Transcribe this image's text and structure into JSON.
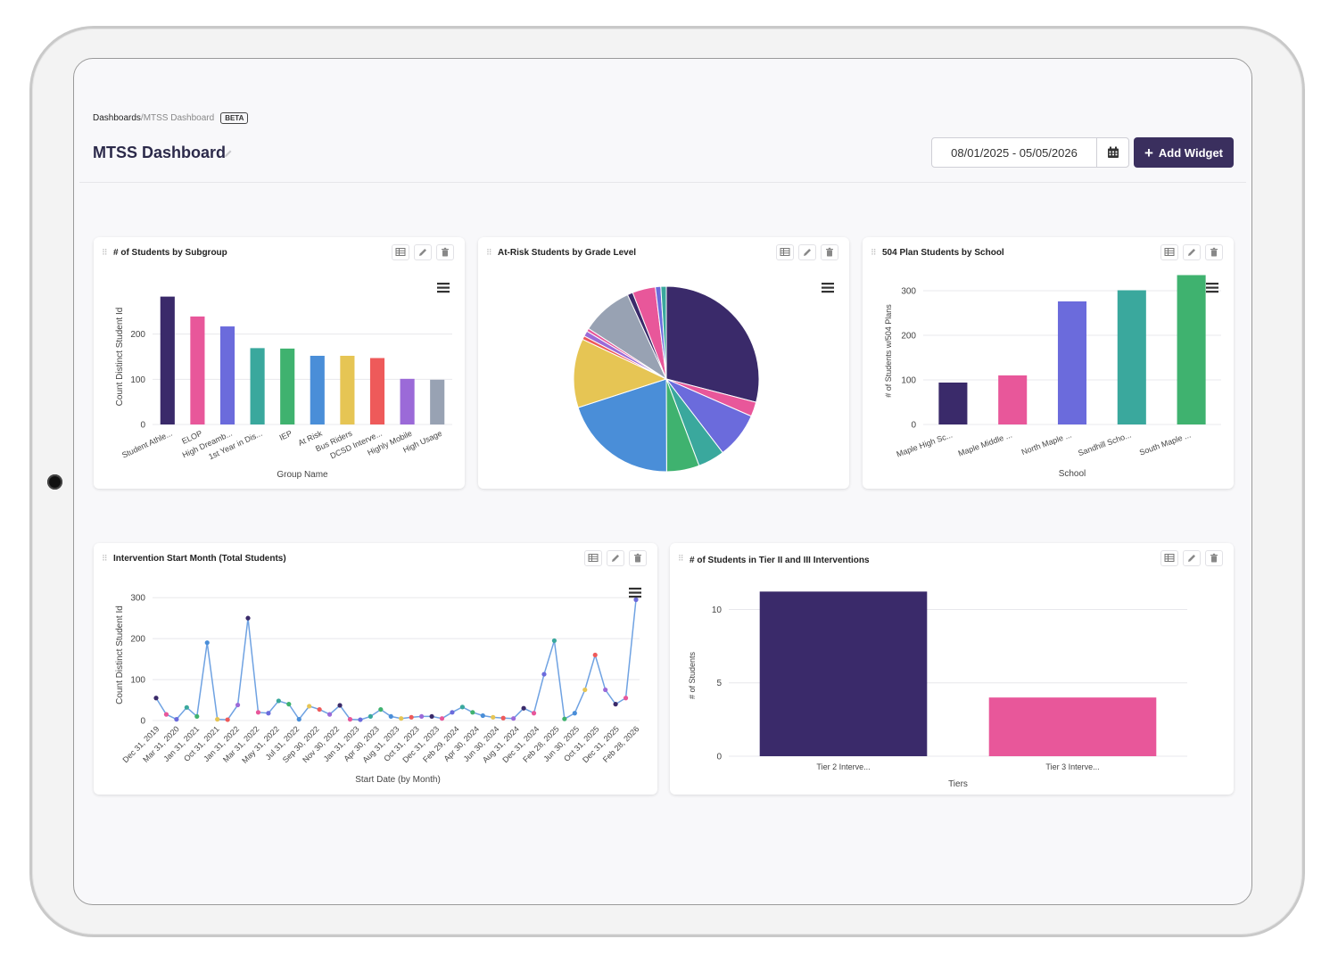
{
  "breadcrumb": {
    "root": "Dashboards",
    "separator": " / ",
    "current": "MTSS Dashboard",
    "badge": "BETA"
  },
  "header": {
    "title": "MTSS Dashboard",
    "date_range": "08/01/2025 - 05/05/2026",
    "add_widget_label": "Add Widget"
  },
  "colors": {
    "primary": "#3a2f5e",
    "pink": "#e8579a",
    "indigo": "#6b6bdc",
    "teal": "#3aa89d",
    "green": "#3fb26f",
    "blue": "#4a8ed8",
    "yellow": "#e6c554",
    "red": "#ee5a5a",
    "purple": "#9b6ad8",
    "gray": "#98a2b3"
  },
  "widgets": [
    {
      "title": "# of Students by Subgroup"
    },
    {
      "title": "At-Risk Students by Grade Level"
    },
    {
      "title": "504 Plan Students by School"
    },
    {
      "title": "Intervention Start Month (Total Students)"
    },
    {
      "title": "# of Students in Tier II and III Interventions"
    }
  ],
  "chart_data": [
    {
      "type": "bar",
      "title": "# of Students by Subgroup",
      "xlabel": "Group Name",
      "ylabel": "Count Distinct Student Id",
      "ylim": [
        0,
        300
      ],
      "yticks": [
        0,
        100,
        200
      ],
      "categories": [
        "Student Athle...",
        "ELOP",
        "High Dreamb...",
        "1st Year in Dis...",
        "IEP",
        "At Risk",
        "Bus Riders",
        "DCSD Interve...",
        "Highly Mobile",
        "High Usage"
      ],
      "values": [
        283,
        239,
        217,
        169,
        168,
        152,
        152,
        147,
        101,
        99
      ],
      "colors": [
        "#3a2a6a",
        "#e8579a",
        "#6b6bdc",
        "#3aa89d",
        "#3fb26f",
        "#4a8ed8",
        "#e6c554",
        "#ee5a5a",
        "#9b6ad8",
        "#98a2b3"
      ]
    },
    {
      "type": "pie",
      "title": "At-Risk Students by Grade Level",
      "values": [
        27.5,
        2.4,
        7.6,
        4.4,
        5.4,
        19.0,
        11.4,
        0.6,
        0.9,
        0.5,
        8.5,
        0.9,
        3.8,
        0.9,
        0.9
      ],
      "colors": [
        "#3a2a6a",
        "#e8579a",
        "#6b6bdc",
        "#3aa89d",
        "#3fb26f",
        "#4a8ed8",
        "#e6c554",
        "#ee5a5a",
        "#9b6ad8",
        "#e8579a",
        "#98a2b3",
        "#3a2a6a",
        "#e8579a",
        "#6b6bdc",
        "#3aa89d"
      ]
    },
    {
      "type": "bar",
      "title": "504 Plan Students by School",
      "xlabel": "School",
      "ylabel": "# of Students w/504 Plans",
      "ylim": [
        0,
        330
      ],
      "yticks": [
        0,
        100,
        200,
        300
      ],
      "categories": [
        "Maple High Sc...",
        "Maple Middle ...",
        "North Maple ...",
        "Sandhill Scho...",
        "South Maple ..."
      ],
      "values": [
        94,
        110,
        276,
        301,
        335
      ],
      "colors": [
        "#3a2a6a",
        "#e8579a",
        "#6b6bdc",
        "#3aa89d",
        "#3fb26f"
      ]
    },
    {
      "type": "line",
      "title": "Intervention Start Month (Total Students)",
      "xlabel": "Start Date (by Month)",
      "ylabel": "Count Distinct Student Id",
      "ylim": [
        0,
        320
      ],
      "yticks": [
        0,
        100,
        200,
        300
      ],
      "tick_labels": [
        "Dec 31, 2019",
        "Mar 31, 2020",
        "Jan 31, 2021",
        "Oct 31, 2021",
        "Jan 31, 2022",
        "Mar 31, 2022",
        "May 31, 2022",
        "Jul 31, 2022",
        "Sep 30, 2022",
        "Nov 30, 2022",
        "Jan 31, 2023",
        "Apr 30, 2023",
        "Aug 31, 2023",
        "Oct 31, 2023",
        "Dec 31, 2023",
        "Feb 29, 2024",
        "Apr 30, 2024",
        "Jun 30, 2024",
        "Aug 31, 2024",
        "Dec 31, 2024",
        "Feb 28, 2025",
        "Jun 30, 2025",
        "Oct 31, 2025",
        "Dec 31, 2025",
        "Feb 28, 2026"
      ],
      "values": [
        55,
        15,
        3,
        32,
        10,
        190,
        3,
        2,
        38,
        250,
        20,
        18,
        48,
        40,
        3,
        35,
        27,
        15,
        37,
        3,
        2,
        10,
        27,
        10,
        5,
        8,
        10,
        10,
        5,
        20,
        33,
        20,
        12,
        8,
        6,
        5,
        30,
        18,
        113,
        195,
        4,
        18,
        75,
        160,
        75,
        40,
        55,
        295
      ],
      "colors": [
        "#3a2a6a",
        "#e8579a",
        "#6b6bdc",
        "#3aa89d",
        "#3fb26f",
        "#4a8ed8",
        "#e6c554",
        "#ee5a5a",
        "#9b6ad8"
      ]
    },
    {
      "type": "bar",
      "title": "# of Students in Tier II and III Interventions",
      "xlabel": "Tiers",
      "ylabel": "# of Students",
      "ylim": [
        0,
        11
      ],
      "yticks": [
        0,
        5,
        10
      ],
      "categories": [
        "Tier 2 Interve...",
        "Tier 3 Interve..."
      ],
      "values": [
        12,
        4
      ],
      "colors": [
        "#3a2a6a",
        "#e8579a"
      ]
    }
  ]
}
